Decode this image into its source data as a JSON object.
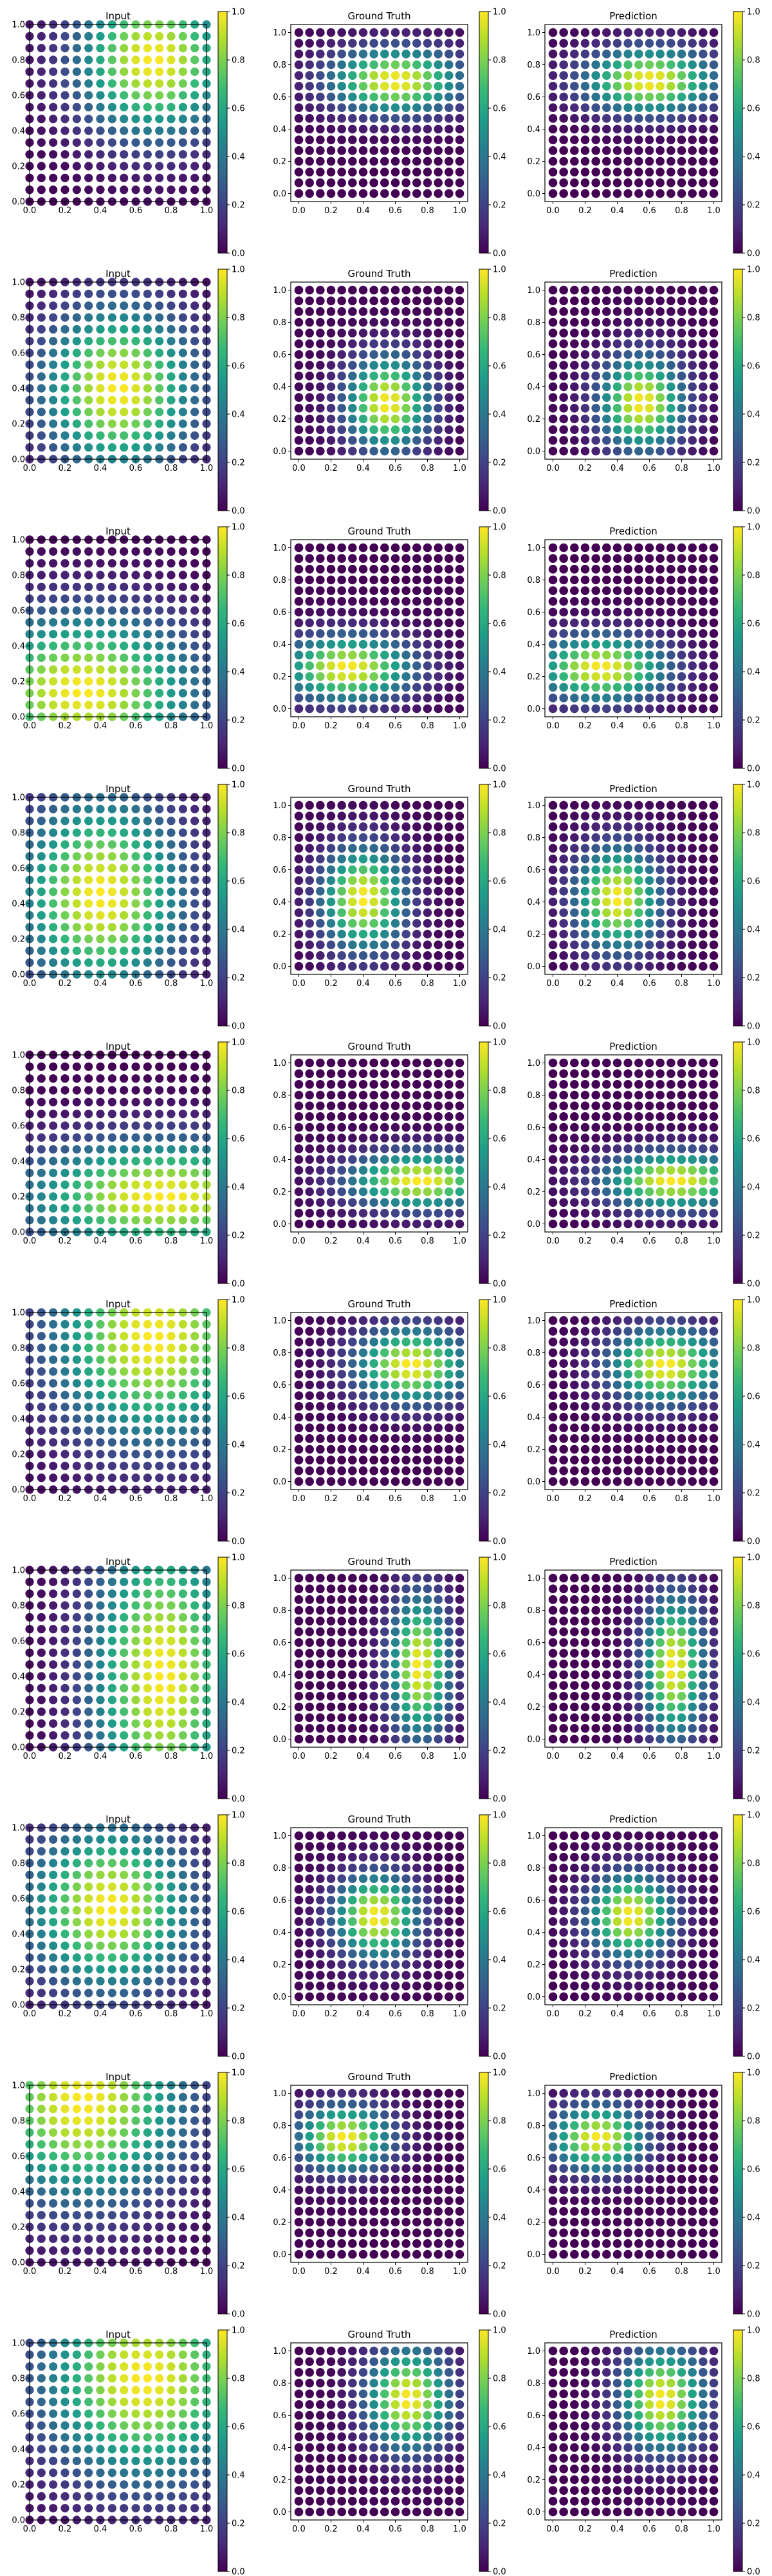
{
  "figure": {
    "rows": 10,
    "panel_titles": [
      "Input",
      "Ground Truth",
      "Prediction"
    ]
  },
  "axis_ticks": [
    "0.0",
    "0.2",
    "0.4",
    "0.6",
    "0.8",
    "1.0"
  ],
  "colorbar_ticks": [
    "0.0",
    "0.2",
    "0.4",
    "0.6",
    "0.8",
    "1.0"
  ],
  "colormap": [
    "#440154",
    "#482878",
    "#3e4989",
    "#31688e",
    "#26828e",
    "#1f9e89",
    "#35b779",
    "#6ece58",
    "#b5de2b",
    "#fde725"
  ],
  "chart_data": [
    {
      "type": "scatter",
      "row": 1,
      "title": "Input",
      "grid_points": 16,
      "xlim": [
        0,
        1
      ],
      "ylim": [
        0,
        1
      ],
      "clim": [
        0,
        1
      ],
      "field": {
        "kind": "gaussian",
        "cx": 0.7,
        "cy": 0.8,
        "sx": 0.3,
        "sy": 0.3
      }
    },
    {
      "type": "scatter",
      "row": 1,
      "title": "Ground Truth",
      "grid_points": 16,
      "xlim": [
        0,
        1
      ],
      "ylim": [
        0,
        1
      ],
      "clim": [
        0,
        1
      ],
      "field": {
        "kind": "gaussian",
        "cx": 0.6,
        "cy": 0.7,
        "sx": 0.28,
        "sy": 0.14
      }
    },
    {
      "type": "scatter",
      "row": 1,
      "title": "Prediction",
      "grid_points": 16,
      "xlim": [
        0,
        1
      ],
      "ylim": [
        0,
        1
      ],
      "clim": [
        0,
        1
      ],
      "field": {
        "kind": "gaussian",
        "cx": 0.6,
        "cy": 0.7,
        "sx": 0.28,
        "sy": 0.14
      }
    },
    {
      "type": "scatter",
      "row": 2,
      "title": "Input",
      "grid_points": 16,
      "xlim": [
        0,
        1
      ],
      "ylim": [
        0,
        1
      ],
      "clim": [
        0,
        1
      ],
      "field": {
        "kind": "gaussian",
        "cx": 0.5,
        "cy": 0.4,
        "sx": 0.3,
        "sy": 0.32
      }
    },
    {
      "type": "scatter",
      "row": 2,
      "title": "Ground Truth",
      "grid_points": 16,
      "xlim": [
        0,
        1
      ],
      "ylim": [
        0,
        1
      ],
      "clim": [
        0,
        1
      ],
      "field": {
        "kind": "gaussian",
        "cx": 0.55,
        "cy": 0.3,
        "sx": 0.18,
        "sy": 0.2
      }
    },
    {
      "type": "scatter",
      "row": 2,
      "title": "Prediction",
      "grid_points": 16,
      "xlim": [
        0,
        1
      ],
      "ylim": [
        0,
        1
      ],
      "clim": [
        0,
        1
      ],
      "field": {
        "kind": "gaussian",
        "cx": 0.55,
        "cy": 0.3,
        "sx": 0.18,
        "sy": 0.2
      }
    },
    {
      "type": "scatter",
      "row": 3,
      "title": "Input",
      "grid_points": 16,
      "xlim": [
        0,
        1
      ],
      "ylim": [
        0,
        1
      ],
      "clim": [
        0,
        1
      ],
      "field": {
        "kind": "gaussian",
        "cx": 0.3,
        "cy": 0.15,
        "sx": 0.45,
        "sy": 0.3
      }
    },
    {
      "type": "scatter",
      "row": 3,
      "title": "Ground Truth",
      "grid_points": 16,
      "xlim": [
        0,
        1
      ],
      "ylim": [
        0,
        1
      ],
      "clim": [
        0,
        1
      ],
      "field": {
        "kind": "gaussian",
        "cx": 0.3,
        "cy": 0.25,
        "sx": 0.28,
        "sy": 0.14
      }
    },
    {
      "type": "scatter",
      "row": 3,
      "title": "Prediction",
      "grid_points": 16,
      "xlim": [
        0,
        1
      ],
      "ylim": [
        0,
        1
      ],
      "clim": [
        0,
        1
      ],
      "field": {
        "kind": "gaussian",
        "cx": 0.3,
        "cy": 0.25,
        "sx": 0.28,
        "sy": 0.14
      }
    },
    {
      "type": "scatter",
      "row": 4,
      "title": "Input",
      "grid_points": 16,
      "xlim": [
        0,
        1
      ],
      "ylim": [
        0,
        1
      ],
      "clim": [
        0,
        1
      ],
      "field": {
        "kind": "gaussian",
        "cx": 0.4,
        "cy": 0.45,
        "sx": 0.32,
        "sy": 0.38
      }
    },
    {
      "type": "scatter",
      "row": 4,
      "title": "Ground Truth",
      "grid_points": 16,
      "xlim": [
        0,
        1
      ],
      "ylim": [
        0,
        1
      ],
      "clim": [
        0,
        1
      ],
      "field": {
        "kind": "gaussian",
        "cx": 0.4,
        "cy": 0.42,
        "sx": 0.18,
        "sy": 0.22
      }
    },
    {
      "type": "scatter",
      "row": 4,
      "title": "Prediction",
      "grid_points": 16,
      "xlim": [
        0,
        1
      ],
      "ylim": [
        0,
        1
      ],
      "clim": [
        0,
        1
      ],
      "field": {
        "kind": "gaussian",
        "cx": 0.4,
        "cy": 0.42,
        "sx": 0.18,
        "sy": 0.22
      }
    },
    {
      "type": "scatter",
      "row": 5,
      "title": "Input",
      "grid_points": 16,
      "xlim": [
        0,
        1
      ],
      "ylim": [
        0,
        1
      ],
      "clim": [
        0,
        1
      ],
      "field": {
        "kind": "gaussian",
        "cx": 0.75,
        "cy": 0.2,
        "sx": 0.55,
        "sy": 0.22
      }
    },
    {
      "type": "scatter",
      "row": 5,
      "title": "Ground Truth",
      "grid_points": 16,
      "xlim": [
        0,
        1
      ],
      "ylim": [
        0,
        1
      ],
      "clim": [
        0,
        1
      ],
      "field": {
        "kind": "gaussian",
        "cx": 0.75,
        "cy": 0.27,
        "sx": 0.3,
        "sy": 0.12
      }
    },
    {
      "type": "scatter",
      "row": 5,
      "title": "Prediction",
      "grid_points": 16,
      "xlim": [
        0,
        1
      ],
      "ylim": [
        0,
        1
      ],
      "clim": [
        0,
        1
      ],
      "field": {
        "kind": "gaussian",
        "cx": 0.75,
        "cy": 0.27,
        "sx": 0.3,
        "sy": 0.12
      }
    },
    {
      "type": "scatter",
      "row": 6,
      "title": "Input",
      "grid_points": 16,
      "xlim": [
        0,
        1
      ],
      "ylim": [
        0,
        1
      ],
      "clim": [
        0,
        1
      ],
      "field": {
        "kind": "gaussian",
        "cx": 0.7,
        "cy": 0.85,
        "sx": 0.4,
        "sy": 0.4
      }
    },
    {
      "type": "scatter",
      "row": 6,
      "title": "Ground Truth",
      "grid_points": 16,
      "xlim": [
        0,
        1
      ],
      "ylim": [
        0,
        1
      ],
      "clim": [
        0,
        1
      ],
      "field": {
        "kind": "gaussian",
        "cx": 0.7,
        "cy": 0.72,
        "sx": 0.24,
        "sy": 0.16
      }
    },
    {
      "type": "scatter",
      "row": 6,
      "title": "Prediction",
      "grid_points": 16,
      "xlim": [
        0,
        1
      ],
      "ylim": [
        0,
        1
      ],
      "clim": [
        0,
        1
      ],
      "field": {
        "kind": "gaussian",
        "cx": 0.7,
        "cy": 0.72,
        "sx": 0.24,
        "sy": 0.16
      }
    },
    {
      "type": "scatter",
      "row": 7,
      "title": "Input",
      "grid_points": 16,
      "xlim": [
        0,
        1
      ],
      "ylim": [
        0,
        1
      ],
      "clim": [
        0,
        1
      ],
      "field": {
        "kind": "gaussian",
        "cx": 0.75,
        "cy": 0.4,
        "sx": 0.28,
        "sy": 0.6
      }
    },
    {
      "type": "scatter",
      "row": 7,
      "title": "Ground Truth",
      "grid_points": 16,
      "xlim": [
        0,
        1
      ],
      "ylim": [
        0,
        1
      ],
      "clim": [
        0,
        1
      ],
      "field": {
        "kind": "gaussian",
        "cx": 0.75,
        "cy": 0.45,
        "sx": 0.13,
        "sy": 0.3
      }
    },
    {
      "type": "scatter",
      "row": 7,
      "title": "Prediction",
      "grid_points": 16,
      "xlim": [
        0,
        1
      ],
      "ylim": [
        0,
        1
      ],
      "clim": [
        0,
        1
      ],
      "field": {
        "kind": "gaussian",
        "cx": 0.75,
        "cy": 0.45,
        "sx": 0.13,
        "sy": 0.3
      }
    },
    {
      "type": "scatter",
      "row": 8,
      "title": "Input",
      "grid_points": 16,
      "xlim": [
        0,
        1
      ],
      "ylim": [
        0,
        1
      ],
      "clim": [
        0,
        1
      ],
      "field": {
        "kind": "gaussian",
        "cx": 0.45,
        "cy": 0.55,
        "sx": 0.32,
        "sy": 0.32
      }
    },
    {
      "type": "scatter",
      "row": 8,
      "title": "Ground Truth",
      "grid_points": 16,
      "xlim": [
        0,
        1
      ],
      "ylim": [
        0,
        1
      ],
      "clim": [
        0,
        1
      ],
      "field": {
        "kind": "gaussian",
        "cx": 0.48,
        "cy": 0.5,
        "sx": 0.18,
        "sy": 0.18
      }
    },
    {
      "type": "scatter",
      "row": 8,
      "title": "Prediction",
      "grid_points": 16,
      "xlim": [
        0,
        1
      ],
      "ylim": [
        0,
        1
      ],
      "clim": [
        0,
        1
      ],
      "field": {
        "kind": "gaussian",
        "cx": 0.48,
        "cy": 0.5,
        "sx": 0.18,
        "sy": 0.18
      }
    },
    {
      "type": "scatter",
      "row": 9,
      "title": "Input",
      "grid_points": 16,
      "xlim": [
        0,
        1
      ],
      "ylim": [
        0,
        1
      ],
      "clim": [
        0,
        1
      ],
      "field": {
        "kind": "gaussian",
        "cx": 0.3,
        "cy": 0.9,
        "sx": 0.4,
        "sy": 0.38
      }
    },
    {
      "type": "scatter",
      "row": 9,
      "title": "Ground Truth",
      "grid_points": 16,
      "xlim": [
        0,
        1
      ],
      "ylim": [
        0,
        1
      ],
      "clim": [
        0,
        1
      ],
      "field": {
        "kind": "gaussian",
        "cx": 0.28,
        "cy": 0.72,
        "sx": 0.2,
        "sy": 0.14
      }
    },
    {
      "type": "scatter",
      "row": 9,
      "title": "Prediction",
      "grid_points": 16,
      "xlim": [
        0,
        1
      ],
      "ylim": [
        0,
        1
      ],
      "clim": [
        0,
        1
      ],
      "field": {
        "kind": "gaussian",
        "cx": 0.28,
        "cy": 0.72,
        "sx": 0.2,
        "sy": 0.14
      }
    },
    {
      "type": "scatter",
      "row": 10,
      "title": "Input",
      "grid_points": 16,
      "xlim": [
        0,
        1
      ],
      "ylim": [
        0,
        1
      ],
      "clim": [
        0,
        1
      ],
      "field": {
        "kind": "gaussian",
        "cx": 0.65,
        "cy": 0.8,
        "sx": 0.4,
        "sy": 0.4
      }
    },
    {
      "type": "scatter",
      "row": 10,
      "title": "Ground Truth",
      "grid_points": 16,
      "xlim": [
        0,
        1
      ],
      "ylim": [
        0,
        1
      ],
      "clim": [
        0,
        1
      ],
      "field": {
        "kind": "gaussian",
        "cx": 0.68,
        "cy": 0.7,
        "sx": 0.18,
        "sy": 0.22
      }
    },
    {
      "type": "scatter",
      "row": 10,
      "title": "Prediction",
      "grid_points": 16,
      "xlim": [
        0,
        1
      ],
      "ylim": [
        0,
        1
      ],
      "clim": [
        0,
        1
      ],
      "field": {
        "kind": "gaussian",
        "cx": 0.68,
        "cy": 0.7,
        "sx": 0.18,
        "sy": 0.22
      }
    }
  ]
}
